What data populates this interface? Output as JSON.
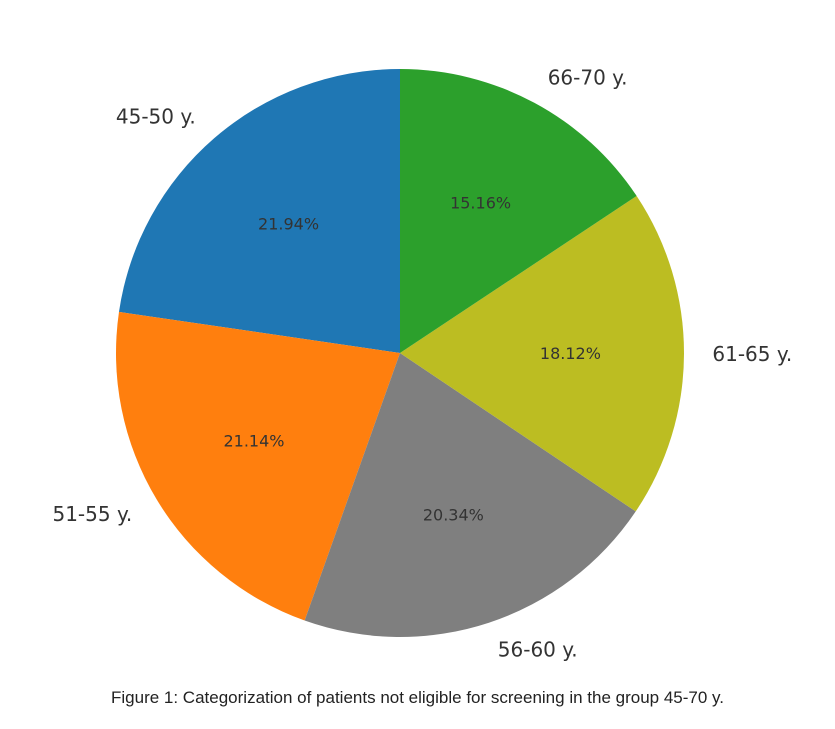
{
  "chart_data": {
    "type": "pie",
    "title": "",
    "categories": [
      "45-50 y.",
      "51-55 y.",
      "56-60 y.",
      "61-65 y.",
      "66-70 y."
    ],
    "values": [
      21.94,
      21.14,
      20.34,
      18.12,
      15.16
    ],
    "value_labels": [
      "21.94%",
      "21.14%",
      "20.34%",
      "18.12%",
      "15.16%"
    ],
    "colors": [
      "#1f77b4",
      "#ff7f0e",
      "#7f7f7f",
      "#bcbd22",
      "#2ca02c"
    ],
    "start_angle_deg": 90,
    "direction": "counterclockwise"
  },
  "caption": "Figure 1: Categorization of patients not eligible for screening in the group 45-70 y."
}
